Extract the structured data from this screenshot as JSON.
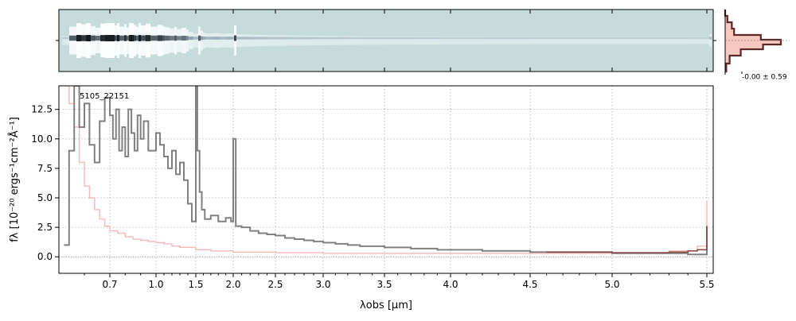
{
  "chart_data": [
    {
      "type": "heatmap",
      "name": "2d-spectrum",
      "colors": [
        "#c5dcdb",
        "#ffffff",
        "#1a1a3a"
      ]
    },
    {
      "type": "line",
      "name": "cross-dispersion-profile",
      "annotation": "-0.00 ± 0.59",
      "colors": {
        "profile": "#5a2a26",
        "fill": "#f7c8c0"
      }
    },
    {
      "type": "line",
      "object_label": "5105_22151",
      "xlabel": "λobs [μm]",
      "ylabel": "fλ [10⁻²⁰ ergs⁻¹cm⁻²Å⁻¹]",
      "xticks": [
        "0.7",
        "1.0",
        "1.5",
        "2.0",
        "2.5",
        "3.0",
        "3.5",
        "4.0",
        "4.5",
        "5.0",
        "5.5"
      ],
      "yticks": [
        "0.0",
        "2.5",
        "5.0",
        "7.5",
        "10.0",
        "12.5"
      ],
      "ylim": [
        -1.4,
        14.5
      ],
      "grid": true,
      "colors": {
        "flux": "#808080",
        "error": "#f7b7b5",
        "model": "#8b4c48"
      },
      "series": [
        {
          "role": "flux",
          "x": [
            0.52,
            0.54,
            0.56,
            0.58,
            0.6,
            0.62,
            0.64,
            0.66,
            0.68,
            0.7,
            0.72,
            0.74,
            0.76,
            0.78,
            0.8,
            0.82,
            0.84,
            0.86,
            0.88,
            0.9,
            0.92,
            0.95,
            1.0,
            1.05,
            1.1,
            1.15,
            1.2,
            1.25,
            1.3,
            1.35,
            1.4,
            1.45,
            1.5,
            1.52,
            1.55,
            1.58,
            1.62,
            1.7,
            1.8,
            1.9,
            1.97,
            2.0,
            2.03,
            2.1,
            2.2,
            2.3,
            2.4,
            2.5,
            2.6,
            2.7,
            2.8,
            2.9,
            3.0,
            3.1,
            3.2,
            3.3,
            3.4,
            3.5,
            3.6,
            3.7,
            3.8,
            3.9,
            4.0,
            4.1,
            4.2,
            4.3,
            4.4,
            4.5,
            4.6,
            4.7,
            4.8,
            4.9,
            5.0,
            5.1,
            5.2,
            5.3,
            5.4,
            5.45,
            5.5
          ],
          "y": [
            1.0,
            9.0,
            14.5,
            11.0,
            13.0,
            9.5,
            8.0,
            11.5,
            13.5,
            12.0,
            10.0,
            12.5,
            9.0,
            11.0,
            8.5,
            12.5,
            10.5,
            9.0,
            12.0,
            10.0,
            11.5,
            9.0,
            10.5,
            9.5,
            8.5,
            7.5,
            9.0,
            7.0,
            8.0,
            6.5,
            4.5,
            3.0,
            14.5,
            9.0,
            5.5,
            4.0,
            3.2,
            3.5,
            3.0,
            3.3,
            3.0,
            10.0,
            2.6,
            2.5,
            2.2,
            2.0,
            1.9,
            1.8,
            1.6,
            1.5,
            1.4,
            1.3,
            1.2,
            1.1,
            1.0,
            0.9,
            0.9,
            0.8,
            0.8,
            0.7,
            0.7,
            0.6,
            0.6,
            0.6,
            0.5,
            0.5,
            0.5,
            0.4,
            0.4,
            0.4,
            0.4,
            0.4,
            0.3,
            0.3,
            0.3,
            0.3,
            0.2,
            0.2,
            2.6
          ]
        },
        {
          "role": "error",
          "x": [
            0.52,
            0.54,
            0.56,
            0.58,
            0.6,
            0.62,
            0.64,
            0.66,
            0.68,
            0.7,
            0.75,
            0.8,
            0.85,
            0.9,
            0.95,
            1.0,
            1.1,
            1.2,
            1.3,
            1.5,
            1.7,
            2.0,
            2.5,
            3.0,
            3.5,
            4.0,
            4.5,
            5.0,
            5.3,
            5.45,
            5.5
          ],
          "y": [
            14.5,
            13.0,
            11.0,
            8.0,
            6.0,
            5.0,
            4.0,
            3.2,
            2.6,
            2.2,
            2.0,
            1.7,
            1.5,
            1.4,
            1.3,
            1.2,
            1.1,
            0.9,
            0.8,
            0.6,
            0.5,
            0.4,
            0.35,
            0.3,
            0.3,
            0.3,
            0.3,
            0.35,
            0.5,
            0.9,
            4.8
          ]
        },
        {
          "role": "model",
          "x": [
            4.6,
            4.7,
            4.8,
            4.9,
            5.0,
            5.1,
            5.2,
            5.3,
            5.4,
            5.45,
            5.5
          ],
          "y": [
            0.4,
            0.4,
            0.4,
            0.4,
            0.35,
            0.35,
            0.35,
            0.4,
            0.5,
            0.6,
            2.6
          ]
        }
      ]
    }
  ]
}
